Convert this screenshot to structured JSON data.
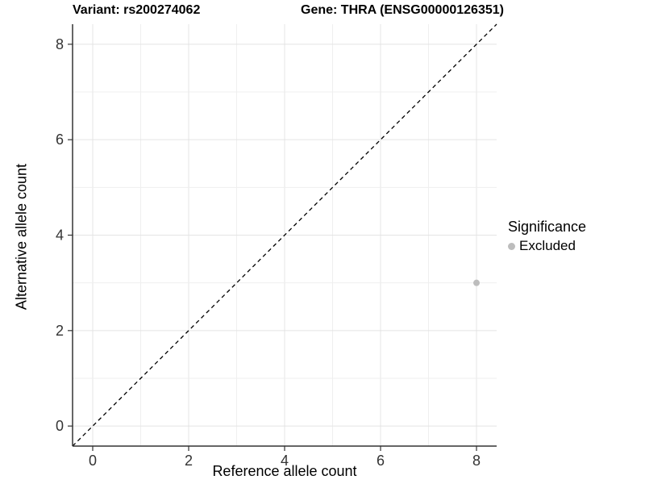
{
  "titles": {
    "variant": "Variant: rs200274062",
    "gene": "Gene: THRA (ENSG00000126351)"
  },
  "chart_data": {
    "type": "scatter",
    "title_left": "Variant: rs200274062",
    "title_right": "Gene: THRA (ENSG00000126351)",
    "xlabel": "Reference allele count",
    "ylabel": "Alternative allele count",
    "xlim": [
      -0.42,
      8.42
    ],
    "ylim": [
      -0.42,
      8.42
    ],
    "x_ticks": [
      0,
      2,
      4,
      6,
      8
    ],
    "y_ticks": [
      0,
      2,
      4,
      6,
      8
    ],
    "grid": "major at even integers, minor at odd integers",
    "reference_line": {
      "type": "identity y=x",
      "style": "dashed",
      "color": "#000000"
    },
    "series": [
      {
        "name": "Excluded",
        "color": "#bdbdbd",
        "points": [
          {
            "x": 8,
            "y": 3
          }
        ]
      }
    ],
    "legend": {
      "title": "Significance",
      "position": "right",
      "items": [
        {
          "label": "Excluded",
          "color": "#bdbdbd"
        }
      ]
    }
  },
  "colors": {
    "background": "#ffffff",
    "grid_major": "#e4e4e4",
    "grid_minor": "#efefef",
    "axis_line": "#333333",
    "tick_text": "#333333",
    "title_text": "#000000",
    "point": "#bdbdbd",
    "reference_line": "#000000"
  }
}
